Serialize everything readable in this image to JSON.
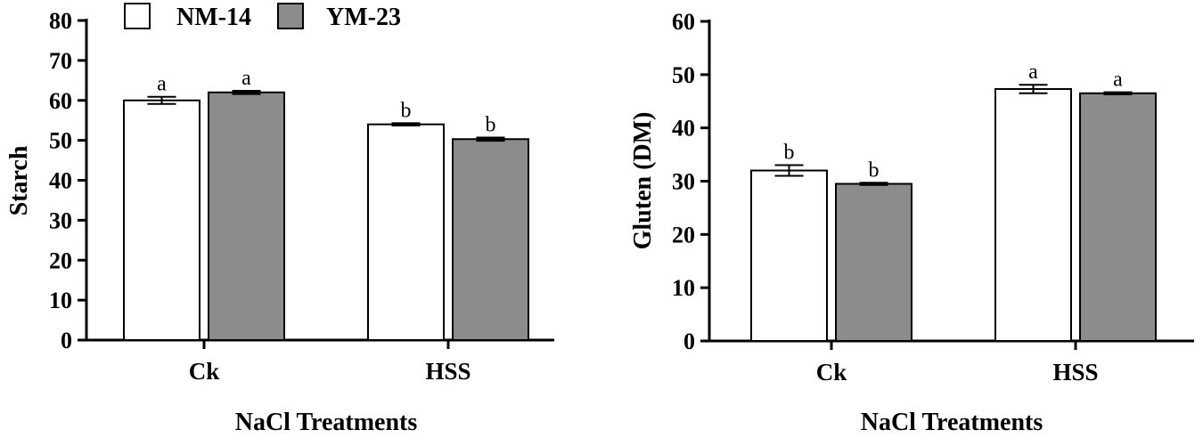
{
  "legend": {
    "entries": [
      {
        "name": "NM-14",
        "color": "#ffffff"
      },
      {
        "name": "YM-23",
        "color": "#8c8c8c"
      }
    ]
  },
  "chart_data": [
    {
      "type": "bar",
      "title": "",
      "xlabel": "NaCl Treatments",
      "ylabel": "Starch",
      "ylim": [
        0,
        80
      ],
      "yticks": [
        0,
        10,
        20,
        30,
        40,
        50,
        60,
        70,
        80
      ],
      "categories": [
        "Ck",
        "HSS"
      ],
      "series": [
        {
          "name": "NM-14",
          "color": "#ffffff",
          "values": [
            60,
            54
          ],
          "errors": [
            0.9,
            0.3
          ],
          "labels": [
            "a",
            "b"
          ]
        },
        {
          "name": "YM-23",
          "color": "#8c8c8c",
          "values": [
            62,
            50.3
          ],
          "errors": [
            0.4,
            0.4
          ],
          "labels": [
            "a",
            "b"
          ]
        }
      ]
    },
    {
      "type": "bar",
      "title": "",
      "xlabel": "NaCl Treatments",
      "ylabel": "Gluten (DM)",
      "ylim": [
        0,
        60
      ],
      "yticks": [
        0,
        10,
        20,
        30,
        40,
        50,
        60
      ],
      "categories": [
        "Ck",
        "HSS"
      ],
      "series": [
        {
          "name": "NM-14",
          "color": "#ffffff",
          "values": [
            32,
            47.3
          ],
          "errors": [
            1.0,
            0.8
          ],
          "labels": [
            "b",
            "a"
          ]
        },
        {
          "name": "YM-23",
          "color": "#8c8c8c",
          "values": [
            29.5,
            46.5
          ],
          "errors": [
            0.2,
            0.2
          ],
          "labels": [
            "b",
            "a"
          ]
        }
      ]
    }
  ]
}
